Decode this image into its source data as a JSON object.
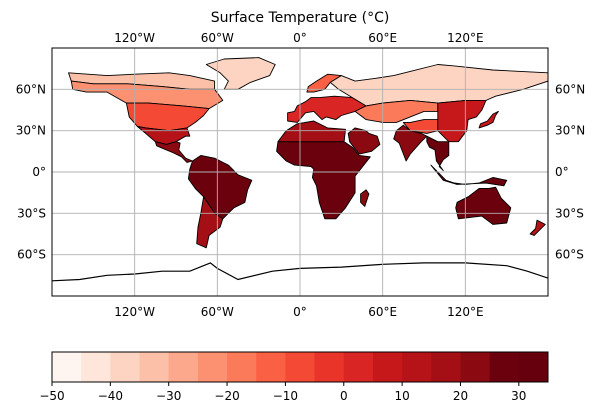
{
  "title": "Surface Temperature (°C)",
  "map": {
    "projection": "PlateCarree",
    "lon_ticks": [
      "120°W",
      "60°W",
      "0°",
      "60°E",
      "120°E"
    ],
    "lat_ticks": [
      "60°N",
      "30°N",
      "0°",
      "30°S",
      "60°S"
    ],
    "gridlines": true,
    "ocean_masked": true,
    "coastline_color": "#000000",
    "grid_color": "#b0b0b0"
  },
  "colorbar": {
    "cmap": "Reds",
    "orientation": "horizontal",
    "vmin": -50,
    "vmax": 35,
    "levels": 17,
    "tick_labels": [
      "−50",
      "−40",
      "−30",
      "−20",
      "−10",
      "0",
      "10",
      "20",
      "30"
    ],
    "colors": [
      "#fff5f0",
      "#fee6da",
      "#fdd4c2",
      "#fcbfa7",
      "#fca88c",
      "#fc9172",
      "#fb7a5a",
      "#f96044",
      "#f34935",
      "#e83429",
      "#d92523",
      "#c6171b",
      "#b61319",
      "#a30f15",
      "#8b0a12",
      "#6c010e",
      "#67000d"
    ]
  },
  "regions": [
    {
      "name": "north-america-arctic",
      "temp": -35
    },
    {
      "name": "north-america-north",
      "temp": -25
    },
    {
      "name": "north-america-mid",
      "temp": -10
    },
    {
      "name": "north-america-south",
      "temp": 10
    },
    {
      "name": "central-america",
      "temp": 24
    },
    {
      "name": "greenland",
      "temp": -40
    },
    {
      "name": "south-america",
      "temp": 26
    },
    {
      "name": "south-america-south",
      "temp": 15
    },
    {
      "name": "europe",
      "temp": 4
    },
    {
      "name": "scandinavia",
      "temp": -15
    },
    {
      "name": "africa",
      "temp": 27
    },
    {
      "name": "africa-north",
      "temp": 18
    },
    {
      "name": "arabia",
      "temp": 24
    },
    {
      "name": "siberia",
      "temp": -38
    },
    {
      "name": "central-asia",
      "temp": -20
    },
    {
      "name": "tibet",
      "temp": -10
    },
    {
      "name": "china",
      "temp": 8
    },
    {
      "name": "india",
      "temp": 24
    },
    {
      "name": "southeast-asia",
      "temp": 26
    },
    {
      "name": "indonesia",
      "temp": 27
    },
    {
      "name": "australia",
      "temp": 26
    },
    {
      "name": "new-zealand",
      "temp": 14
    },
    {
      "name": "japan",
      "temp": 8
    },
    {
      "name": "madagascar",
      "temp": 24
    }
  ]
}
